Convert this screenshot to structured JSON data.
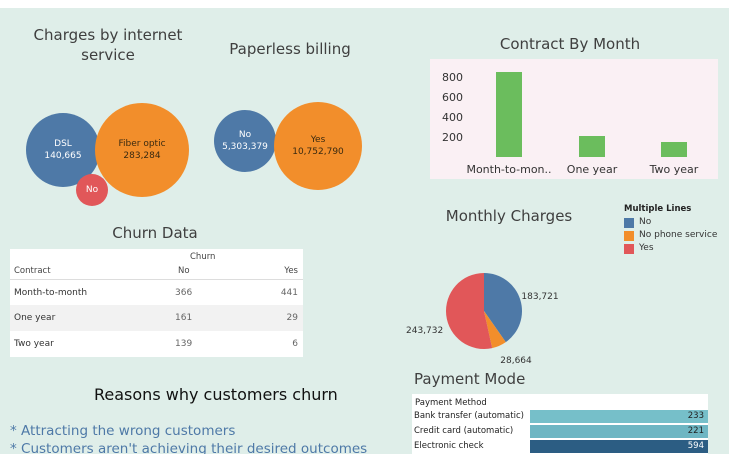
{
  "bubbles_internet": {
    "title_line1": "Charges by internet",
    "title_line2": "service",
    "items": [
      {
        "label": "DSL",
        "value": "140,665"
      },
      {
        "label": "Fiber optic",
        "value": "283,284"
      },
      {
        "label": "No",
        "value": ""
      }
    ]
  },
  "bubbles_paperless": {
    "title": "Paperless billing",
    "items": [
      {
        "label": "No",
        "value": "5,303,379"
      },
      {
        "label": "Yes",
        "value": "10,752,790"
      }
    ]
  },
  "contract_chart": {
    "title": "Contract By Month",
    "chart_data": {
      "type": "bar",
      "categories": [
        "Month-to-mon..",
        "One year",
        "Two year"
      ],
      "values": [
        850,
        210,
        150
      ],
      "yticks": [
        200,
        400,
        600,
        800
      ],
      "ylim": [
        0,
        900
      ],
      "color": "#6bbd5d"
    }
  },
  "churn": {
    "title": "Churn Data",
    "group_header": "Churn",
    "col_contract": "Contract",
    "col_no": "No",
    "col_yes": "Yes",
    "rows": [
      {
        "contract": "Month-to-month",
        "no": "366",
        "yes": "441"
      },
      {
        "contract": "One year",
        "no": "161",
        "yes": "29"
      },
      {
        "contract": "Two year",
        "no": "139",
        "yes": "6"
      }
    ]
  },
  "monthly": {
    "title": "Monthly Charges",
    "legend_title": "Multiple Lines",
    "legend": [
      {
        "label": "No",
        "color": "#4e79a7"
      },
      {
        "label": "No phone service",
        "color": "#f28e2b"
      },
      {
        "label": "Yes",
        "color": "#e15759"
      }
    ],
    "chart_data": {
      "type": "pie",
      "slices": [
        {
          "name": "No",
          "value": 183721,
          "label": "183,721",
          "color": "#4e79a7"
        },
        {
          "name": "No phone service",
          "value": 28664,
          "label": "28,664",
          "color": "#f28e2b"
        },
        {
          "name": "Yes",
          "value": 243732,
          "label": "243,732",
          "color": "#e15759"
        }
      ]
    }
  },
  "reasons": {
    "title": "Reasons why customers churn",
    "items": [
      "* Attracting the wrong customers",
      "* Customers aren't achieving their desired outcomes"
    ]
  },
  "payment": {
    "title": "Payment Mode",
    "header": "Payment Method",
    "rows": [
      {
        "label": "Bank transfer (automatic)",
        "value": "233",
        "n": 233,
        "color": "#76bfc9"
      },
      {
        "label": "Credit card (automatic)",
        "value": "221",
        "n": 221,
        "color": "#6eb6c3"
      },
      {
        "label": "Electronic check",
        "value": "594",
        "n": 594,
        "color": "#2c5d83"
      }
    ]
  }
}
